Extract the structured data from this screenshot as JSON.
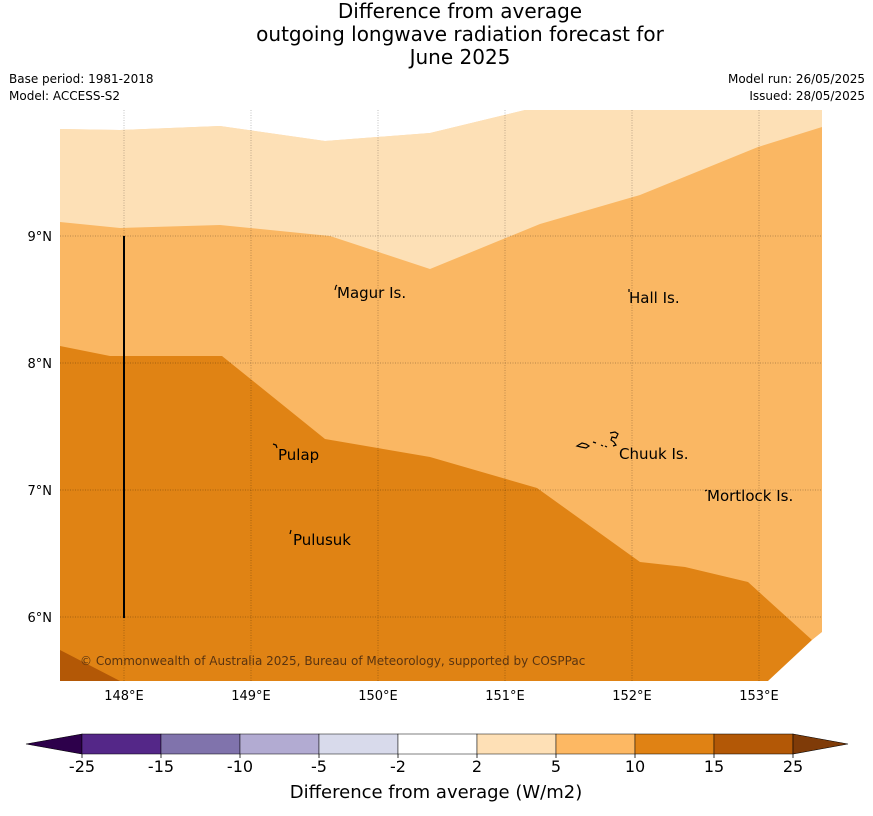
{
  "title": {
    "line1": "Difference from average",
    "line2": "outgoing longwave radiation forecast for",
    "line3": "June 2025"
  },
  "meta": {
    "base_period": "Base period: 1981-2018",
    "model": "Model: ACCESS-S2",
    "model_run": "Model run: 26/05/2025",
    "issued": "Issued: 28/05/2025"
  },
  "map": {
    "lat_labels": [
      "9°N",
      "8°N",
      "7°N",
      "6°N"
    ],
    "lon_labels": [
      "148°E",
      "149°E",
      "150°E",
      "151°E",
      "152°E",
      "153°E"
    ],
    "places": [
      {
        "name": "Magur Is."
      },
      {
        "name": "Hall Is."
      },
      {
        "name": "Pulap"
      },
      {
        "name": "Chuuk Is."
      },
      {
        "name": "Mortlock Is."
      },
      {
        "name": "Pulusuk"
      }
    ],
    "credit": "© Commonwealth of Australia 2025, Bureau of Meteorology, supported by COSPPac",
    "colors": {
      "band_2_5": "#fde0b6",
      "band_5_10": "#fab763",
      "band_10_15": "#e08314",
      "band_15_25": "#b35806"
    }
  },
  "colorbar": {
    "ticks": [
      "-25",
      "-15",
      "-10",
      "-5",
      "-2",
      "2",
      "5",
      "10",
      "15",
      "25"
    ],
    "colors": [
      "#2d004b",
      "#542788",
      "#8073ac",
      "#b2abd2",
      "#d8daeb",
      "#ffffff",
      "#fee0b6",
      "#fdb863",
      "#e08214",
      "#b35806",
      "#7f3b08"
    ],
    "label": "Difference from average (W/m2)"
  }
}
